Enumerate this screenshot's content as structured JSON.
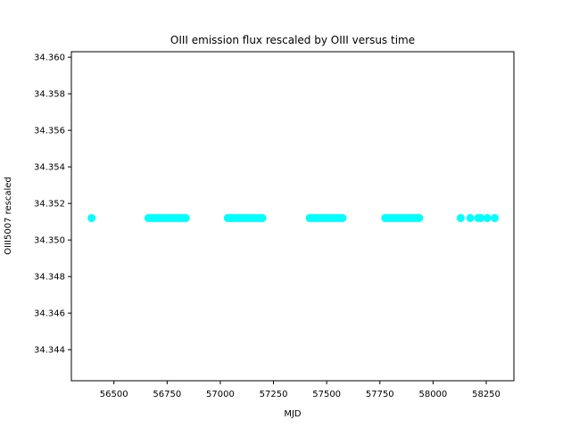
{
  "chart_data": {
    "type": "scatter",
    "title": "OIII emission flux rescaled by OIII versus time",
    "xlabel": "MJD",
    "ylabel": "OIII5007 rescaled",
    "xlim": [
      56300,
      58380
    ],
    "ylim": [
      34.3423,
      34.3603
    ],
    "xticks": [
      56500,
      56750,
      57000,
      57250,
      57500,
      57750,
      58000,
      58250
    ],
    "yticks": [
      34.344,
      34.346,
      34.348,
      34.35,
      34.352,
      34.354,
      34.356,
      34.358,
      34.36
    ],
    "ytick_labels": [
      "34.344",
      "34.346",
      "34.348",
      "34.350",
      "34.352",
      "34.354",
      "34.356",
      "34.358",
      "34.360"
    ],
    "grid": false,
    "marker_color": "#00ffff",
    "x": [
      56395,
      56662,
      56675,
      56688,
      56700,
      56712,
      56725,
      56738,
      56750,
      56762,
      56775,
      56788,
      56800,
      56812,
      56825,
      56838,
      57035,
      57048,
      57060,
      57072,
      57085,
      57098,
      57110,
      57122,
      57135,
      57148,
      57160,
      57172,
      57185,
      57198,
      57420,
      57432,
      57445,
      57458,
      57470,
      57482,
      57495,
      57508,
      57520,
      57532,
      57545,
      57558,
      57575,
      57775,
      57788,
      57800,
      57812,
      57825,
      57838,
      57850,
      57862,
      57875,
      57888,
      57900,
      57912,
      57925,
      57935,
      58130,
      58175,
      58212,
      58225,
      58255,
      58290
    ],
    "y_value": 34.3512
  }
}
